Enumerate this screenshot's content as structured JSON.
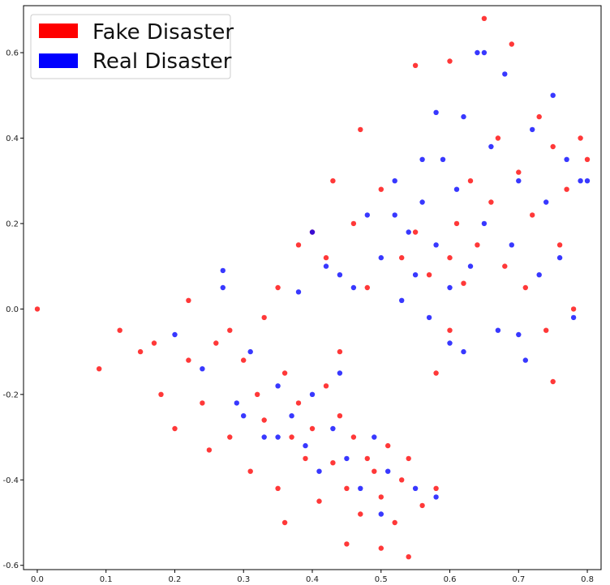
{
  "chart_data": {
    "type": "scatter",
    "grid": false,
    "legend_position": "upper-left",
    "xlim": [
      -0.02,
      0.82
    ],
    "ylim": [
      -0.61,
      0.71
    ],
    "xticks": [
      "0.0",
      "0.1",
      "0.2",
      "0.3",
      "0.4",
      "0.5",
      "0.6",
      "0.7",
      "0.8"
    ],
    "yticks": [
      "-0.6",
      "-0.4",
      "-0.2",
      "0.0",
      "0.2",
      "0.4",
      "0.6"
    ],
    "series": [
      {
        "name": "Fake Disaster",
        "color": "#ff0000",
        "points": [
          [
            0.0,
            0.0
          ],
          [
            0.09,
            -0.14
          ],
          [
            0.12,
            -0.05
          ],
          [
            0.15,
            -0.1
          ],
          [
            0.17,
            -0.08
          ],
          [
            0.18,
            -0.2
          ],
          [
            0.2,
            -0.28
          ],
          [
            0.22,
            -0.12
          ],
          [
            0.24,
            -0.22
          ],
          [
            0.25,
            -0.33
          ],
          [
            0.26,
            -0.08
          ],
          [
            0.28,
            -0.3
          ],
          [
            0.3,
            -0.12
          ],
          [
            0.31,
            -0.38
          ],
          [
            0.32,
            -0.2
          ],
          [
            0.33,
            -0.26
          ],
          [
            0.35,
            -0.42
          ],
          [
            0.36,
            -0.15
          ],
          [
            0.37,
            -0.3
          ],
          [
            0.38,
            -0.22
          ],
          [
            0.39,
            -0.35
          ],
          [
            0.4,
            -0.28
          ],
          [
            0.41,
            -0.45
          ],
          [
            0.42,
            -0.18
          ],
          [
            0.43,
            -0.36
          ],
          [
            0.44,
            -0.25
          ],
          [
            0.45,
            -0.42
          ],
          [
            0.46,
            -0.3
          ],
          [
            0.47,
            -0.48
          ],
          [
            0.48,
            -0.35
          ],
          [
            0.49,
            -0.38
          ],
          [
            0.5,
            -0.44
          ],
          [
            0.51,
            -0.32
          ],
          [
            0.52,
            -0.5
          ],
          [
            0.53,
            -0.4
          ],
          [
            0.54,
            -0.35
          ],
          [
            0.56,
            -0.46
          ],
          [
            0.58,
            -0.42
          ],
          [
            0.6,
            0.12
          ],
          [
            0.61,
            0.2
          ],
          [
            0.62,
            0.06
          ],
          [
            0.63,
            0.3
          ],
          [
            0.64,
            0.15
          ],
          [
            0.65,
            0.68
          ],
          [
            0.66,
            0.25
          ],
          [
            0.67,
            0.4
          ],
          [
            0.68,
            0.1
          ],
          [
            0.69,
            0.62
          ],
          [
            0.7,
            0.32
          ],
          [
            0.71,
            0.05
          ],
          [
            0.72,
            0.22
          ],
          [
            0.73,
            0.45
          ],
          [
            0.74,
            -0.05
          ],
          [
            0.75,
            0.38
          ],
          [
            0.76,
            0.15
          ],
          [
            0.77,
            0.28
          ],
          [
            0.78,
            0.0
          ],
          [
            0.79,
            0.4
          ],
          [
            0.8,
            0.35
          ],
          [
            0.57,
            0.08
          ],
          [
            0.55,
            0.18
          ],
          [
            0.53,
            0.12
          ],
          [
            0.5,
            0.28
          ],
          [
            0.48,
            0.05
          ],
          [
            0.46,
            0.2
          ],
          [
            0.42,
            0.12
          ],
          [
            0.38,
            0.15
          ],
          [
            0.35,
            0.05
          ],
          [
            0.43,
            0.3
          ],
          [
            0.47,
            0.42
          ],
          [
            0.55,
            0.57
          ],
          [
            0.6,
            0.58
          ],
          [
            0.45,
            -0.55
          ],
          [
            0.5,
            -0.56
          ],
          [
            0.58,
            -0.15
          ],
          [
            0.6,
            -0.05
          ],
          [
            0.33,
            -0.02
          ],
          [
            0.28,
            -0.05
          ],
          [
            0.22,
            0.02
          ],
          [
            0.4,
            0.18
          ],
          [
            0.75,
            -0.17
          ],
          [
            0.44,
            -0.1
          ],
          [
            0.36,
            -0.5
          ],
          [
            0.54,
            -0.58
          ]
        ]
      },
      {
        "name": "Real Disaster",
        "color": "#0000ff",
        "points": [
          [
            0.2,
            -0.06
          ],
          [
            0.24,
            -0.14
          ],
          [
            0.27,
            0.09
          ],
          [
            0.27,
            0.05
          ],
          [
            0.29,
            -0.22
          ],
          [
            0.31,
            -0.1
          ],
          [
            0.33,
            -0.3
          ],
          [
            0.35,
            -0.18
          ],
          [
            0.37,
            -0.25
          ],
          [
            0.38,
            0.04
          ],
          [
            0.39,
            -0.32
          ],
          [
            0.4,
            -0.2
          ],
          [
            0.41,
            -0.38
          ],
          [
            0.42,
            0.1
          ],
          [
            0.43,
            -0.28
          ],
          [
            0.44,
            -0.15
          ],
          [
            0.45,
            -0.35
          ],
          [
            0.46,
            0.05
          ],
          [
            0.47,
            -0.42
          ],
          [
            0.48,
            0.22
          ],
          [
            0.49,
            -0.3
          ],
          [
            0.5,
            0.12
          ],
          [
            0.51,
            -0.38
          ],
          [
            0.52,
            0.3
          ],
          [
            0.53,
            0.02
          ],
          [
            0.54,
            0.18
          ],
          [
            0.55,
            0.08
          ],
          [
            0.56,
            0.25
          ],
          [
            0.57,
            -0.02
          ],
          [
            0.58,
            0.15
          ],
          [
            0.59,
            0.35
          ],
          [
            0.6,
            0.05
          ],
          [
            0.61,
            0.28
          ],
          [
            0.62,
            0.45
          ],
          [
            0.63,
            0.1
          ],
          [
            0.64,
            0.6
          ],
          [
            0.65,
            0.2
          ],
          [
            0.66,
            0.38
          ],
          [
            0.67,
            -0.05
          ],
          [
            0.68,
            0.55
          ],
          [
            0.69,
            0.15
          ],
          [
            0.7,
            0.3
          ],
          [
            0.71,
            -0.12
          ],
          [
            0.72,
            0.42
          ],
          [
            0.73,
            0.08
          ],
          [
            0.74,
            0.25
          ],
          [
            0.75,
            0.5
          ],
          [
            0.76,
            0.12
          ],
          [
            0.77,
            0.35
          ],
          [
            0.78,
            -0.02
          ],
          [
            0.79,
            0.3
          ],
          [
            0.8,
            0.3
          ],
          [
            0.58,
            0.46
          ],
          [
            0.65,
            0.6
          ],
          [
            0.5,
            -0.48
          ],
          [
            0.55,
            -0.42
          ],
          [
            0.58,
            -0.44
          ],
          [
            0.35,
            -0.3
          ],
          [
            0.3,
            -0.25
          ],
          [
            0.4,
            0.18
          ],
          [
            0.44,
            0.08
          ],
          [
            0.52,
            0.22
          ],
          [
            0.56,
            0.35
          ],
          [
            0.6,
            -0.08
          ],
          [
            0.7,
            -0.06
          ],
          [
            0.62,
            -0.1
          ]
        ]
      }
    ]
  }
}
